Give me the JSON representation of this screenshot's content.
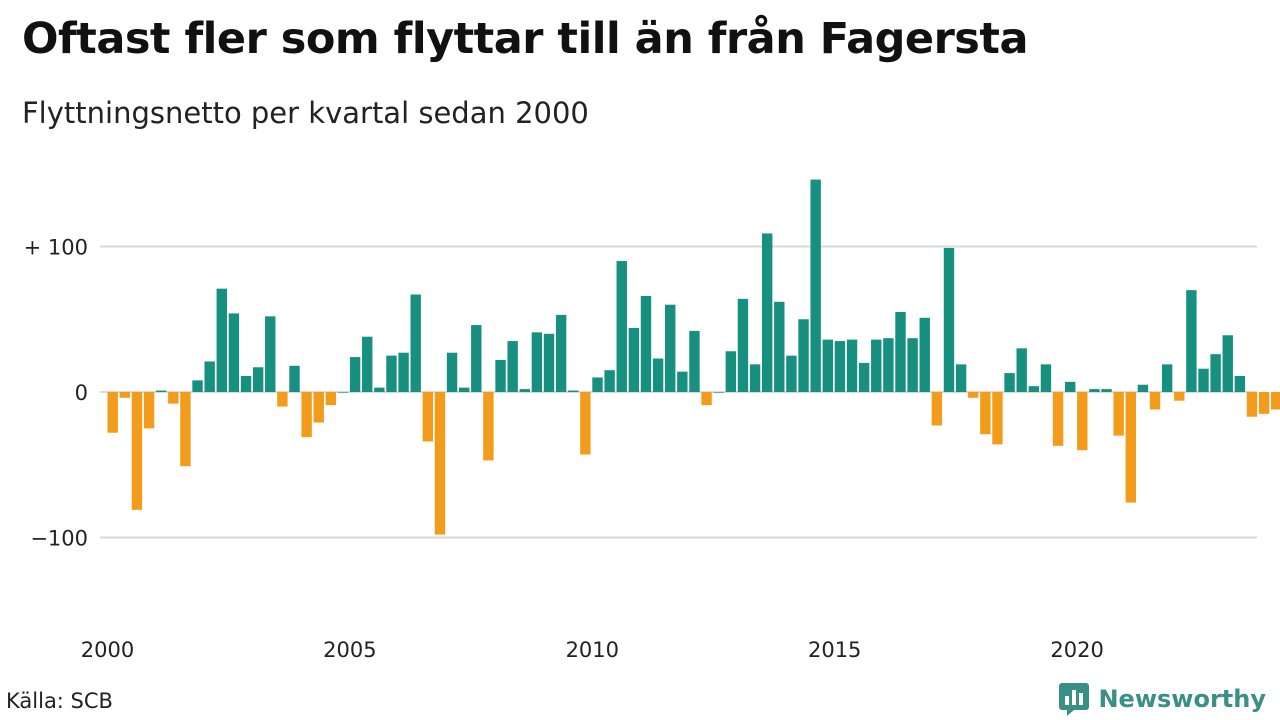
{
  "header": {
    "title": "Oftast fler som flyttar till än från Fagersta",
    "subtitle": "Flyttningsnetto per kvartal sedan 2000"
  },
  "footer": {
    "source": "Källa: SCB",
    "brand": "Newsworthy",
    "brand_icon": "bar-chart-speech-bubble-icon"
  },
  "colors": {
    "positive": "#17907f",
    "negative": "#f39c1c",
    "grid": "#d9d9d9",
    "brand": "#3a8f86"
  },
  "chart_data": {
    "type": "bar",
    "title": "Oftast fler som flyttar till än från Fagersta",
    "subtitle": "Flyttningsnetto per kvartal sedan 2000",
    "x_start": "2000 Q1",
    "x_frequency": "quarter",
    "xlabel": "",
    "ylabel": "",
    "ylim": [
      -150,
      150
    ],
    "y_ticks": [
      {
        "value": 100,
        "label": "+ 100"
      },
      {
        "value": 0,
        "label": "0"
      },
      {
        "value": -100,
        "label": "−100"
      }
    ],
    "x_ticks": [
      "2000",
      "2005",
      "2010",
      "2015",
      "2020"
    ],
    "grid": true,
    "legend": "none",
    "values": [
      -28,
      -4,
      -81,
      -25,
      1,
      -8,
      -51,
      8,
      21,
      71,
      54,
      11,
      17,
      52,
      -10,
      18,
      -31,
      -21,
      -9,
      0,
      24,
      38,
      3,
      25,
      27,
      67,
      -34,
      -98,
      27,
      3,
      46,
      -47,
      22,
      35,
      2,
      41,
      40,
      53,
      1,
      -43,
      10,
      15,
      90,
      44,
      66,
      23,
      60,
      14,
      42,
      -9,
      0,
      28,
      64,
      19,
      109,
      62,
      25,
      50,
      146,
      36,
      35,
      36,
      20,
      36,
      37,
      55,
      37,
      51,
      -23,
      99,
      19,
      -4,
      -29,
      -36,
      13,
      30,
      4,
      19,
      -37,
      7,
      -40,
      2,
      2,
      -30,
      -76,
      5,
      -12,
      19,
      -6,
      70,
      16,
      26,
      39,
      11,
      -17,
      -15,
      -12
    ]
  }
}
